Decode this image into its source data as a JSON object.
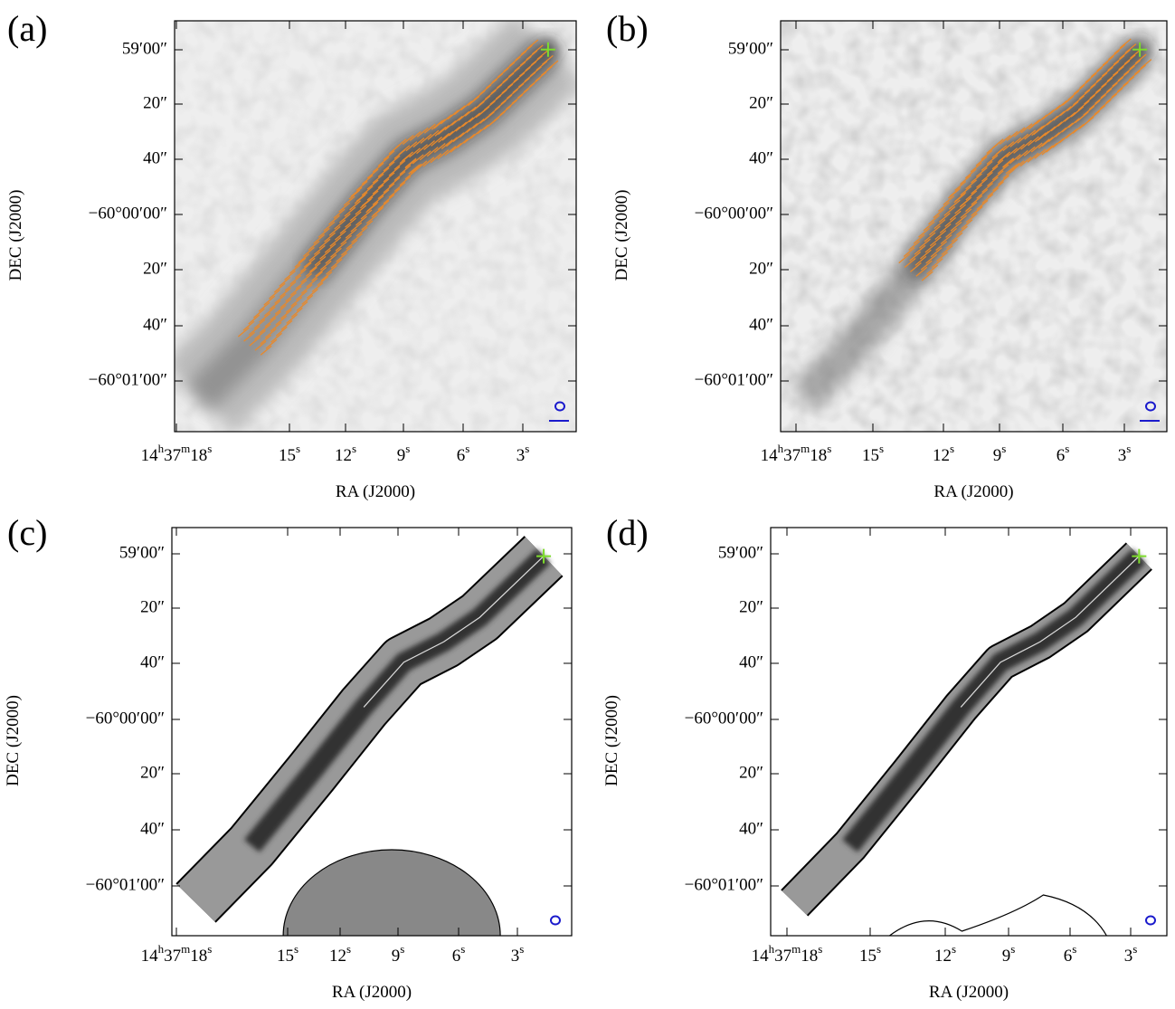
{
  "panels": [
    {
      "label": "(a)",
      "xlabel": "RA (J2000)",
      "ylabel": "DEC (J2000)",
      "yticks": [
        "59′00″",
        "20″",
        "40″",
        "−60°00′00″",
        "20″",
        "40″",
        "−60°01′00″"
      ],
      "xticks": [
        [
          "14",
          "h",
          "37",
          "m",
          "18",
          "s"
        ],
        [
          "15",
          "s"
        ],
        [
          "12",
          "s"
        ],
        [
          "9",
          "s"
        ],
        [
          "6",
          "s"
        ],
        [
          "3",
          "s"
        ]
      ]
    },
    {
      "label": "(b)",
      "xlabel": "RA (J2000)",
      "ylabel": "DEC (J2000)",
      "yticks": [
        "59′00″",
        "20″",
        "40″",
        "−60°00′00″",
        "20″",
        "40″",
        "−60°01′00″"
      ],
      "xticks": [
        [
          "14",
          "h",
          "37",
          "m",
          "18",
          "s"
        ],
        [
          "15",
          "s"
        ],
        [
          "12",
          "s"
        ],
        [
          "9",
          "s"
        ],
        [
          "6",
          "s"
        ],
        [
          "3",
          "s"
        ]
      ]
    },
    {
      "label": "(c)",
      "xlabel": "RA (J2000)",
      "ylabel": "DEC (J2000)",
      "yticks": [
        "59′00″",
        "20″",
        "40″",
        "−60°00′00″",
        "20″",
        "40″",
        "−60°01′00″"
      ],
      "xticks": [
        [
          "14",
          "h",
          "37",
          "m",
          "18",
          "s"
        ],
        [
          "15",
          "s"
        ],
        [
          "12",
          "s"
        ],
        [
          "9",
          "s"
        ],
        [
          "6",
          "s"
        ],
        [
          "3",
          "s"
        ]
      ]
    },
    {
      "label": "(d)",
      "xlabel": "RA (J2000)",
      "ylabel": "DEC (J2000)",
      "yticks": [
        "59′00″",
        "20″",
        "40″",
        "−60°00′00″",
        "20″",
        "40″",
        "−60°01′00″"
      ],
      "xticks": [
        [
          "14",
          "h",
          "37",
          "m",
          "18",
          "s"
        ],
        [
          "15",
          "s"
        ],
        [
          "12",
          "s"
        ],
        [
          "9",
          "s"
        ],
        [
          "6",
          "s"
        ],
        [
          "3",
          "s"
        ]
      ]
    }
  ]
}
